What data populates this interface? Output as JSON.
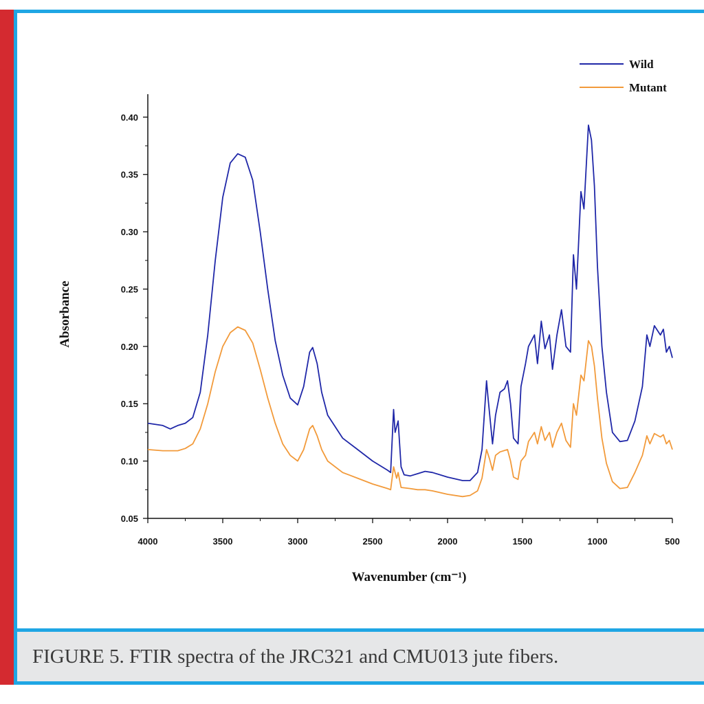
{
  "figure": {
    "caption": "FIGURE 5. FTIR spectra of the JRC321 and CMU013 jute fibers."
  },
  "colors": {
    "wild": "#1f27a8",
    "mutant": "#f29a3a",
    "frame": "#1fa6e4",
    "sidebar": "#d42a30",
    "caption_bg": "#e6e7e8"
  },
  "chart_data": {
    "type": "line",
    "xlabel": "Wavenumber (cm⁻¹)",
    "ylabel": "Absorbance",
    "xlim": [
      4000,
      500
    ],
    "ylim": [
      0.05,
      0.42
    ],
    "x_reversed": true,
    "x_ticks": [
      4000,
      3500,
      3000,
      2500,
      2000,
      1500,
      1000,
      500
    ],
    "x_tick_labels": [
      "4000",
      "3500",
      "3000",
      "2500",
      "2000",
      "1500",
      "1000",
      "500"
    ],
    "y_ticks": [
      0.05,
      0.1,
      0.15,
      0.2,
      0.25,
      0.3,
      0.35,
      0.4
    ],
    "y_tick_labels": [
      "0.05",
      "0.10",
      "0.15",
      "0.20",
      "0.25",
      "0.30",
      "0.35",
      "0.40"
    ],
    "legend_position": "top-right",
    "series": [
      {
        "name": "Wild",
        "color": "#1f27a8",
        "points": [
          [
            4000,
            0.133
          ],
          [
            3900,
            0.131
          ],
          [
            3850,
            0.128
          ],
          [
            3800,
            0.131
          ],
          [
            3750,
            0.133
          ],
          [
            3700,
            0.138
          ],
          [
            3650,
            0.16
          ],
          [
            3600,
            0.21
          ],
          [
            3550,
            0.275
          ],
          [
            3500,
            0.33
          ],
          [
            3450,
            0.36
          ],
          [
            3400,
            0.368
          ],
          [
            3350,
            0.365
          ],
          [
            3300,
            0.345
          ],
          [
            3250,
            0.3
          ],
          [
            3200,
            0.25
          ],
          [
            3150,
            0.205
          ],
          [
            3100,
            0.175
          ],
          [
            3050,
            0.155
          ],
          [
            3000,
            0.149
          ],
          [
            2960,
            0.165
          ],
          [
            2920,
            0.195
          ],
          [
            2900,
            0.199
          ],
          [
            2870,
            0.185
          ],
          [
            2840,
            0.16
          ],
          [
            2800,
            0.14
          ],
          [
            2700,
            0.12
          ],
          [
            2600,
            0.11
          ],
          [
            2500,
            0.1
          ],
          [
            2400,
            0.092
          ],
          [
            2380,
            0.09
          ],
          [
            2360,
            0.145
          ],
          [
            2350,
            0.125
          ],
          [
            2330,
            0.135
          ],
          [
            2310,
            0.095
          ],
          [
            2290,
            0.088
          ],
          [
            2250,
            0.087
          ],
          [
            2200,
            0.089
          ],
          [
            2150,
            0.091
          ],
          [
            2100,
            0.09
          ],
          [
            2000,
            0.086
          ],
          [
            1900,
            0.083
          ],
          [
            1850,
            0.083
          ],
          [
            1800,
            0.09
          ],
          [
            1770,
            0.11
          ],
          [
            1740,
            0.17
          ],
          [
            1730,
            0.155
          ],
          [
            1700,
            0.115
          ],
          [
            1680,
            0.14
          ],
          [
            1650,
            0.16
          ],
          [
            1620,
            0.163
          ],
          [
            1600,
            0.17
          ],
          [
            1580,
            0.15
          ],
          [
            1560,
            0.12
          ],
          [
            1530,
            0.115
          ],
          [
            1510,
            0.165
          ],
          [
            1480,
            0.185
          ],
          [
            1460,
            0.2
          ],
          [
            1420,
            0.21
          ],
          [
            1400,
            0.185
          ],
          [
            1375,
            0.222
          ],
          [
            1350,
            0.198
          ],
          [
            1320,
            0.21
          ],
          [
            1300,
            0.18
          ],
          [
            1270,
            0.21
          ],
          [
            1240,
            0.232
          ],
          [
            1210,
            0.2
          ],
          [
            1180,
            0.195
          ],
          [
            1160,
            0.28
          ],
          [
            1140,
            0.25
          ],
          [
            1110,
            0.335
          ],
          [
            1090,
            0.32
          ],
          [
            1060,
            0.393
          ],
          [
            1040,
            0.38
          ],
          [
            1020,
            0.34
          ],
          [
            1000,
            0.27
          ],
          [
            970,
            0.2
          ],
          [
            940,
            0.16
          ],
          [
            900,
            0.125
          ],
          [
            850,
            0.117
          ],
          [
            800,
            0.118
          ],
          [
            750,
            0.135
          ],
          [
            700,
            0.165
          ],
          [
            670,
            0.21
          ],
          [
            650,
            0.2
          ],
          [
            620,
            0.218
          ],
          [
            580,
            0.21
          ],
          [
            560,
            0.215
          ],
          [
            540,
            0.195
          ],
          [
            520,
            0.2
          ],
          [
            500,
            0.19
          ]
        ]
      },
      {
        "name": "Mutant",
        "color": "#f29a3a",
        "points": [
          [
            4000,
            0.11
          ],
          [
            3900,
            0.109
          ],
          [
            3800,
            0.109
          ],
          [
            3750,
            0.111
          ],
          [
            3700,
            0.115
          ],
          [
            3650,
            0.128
          ],
          [
            3600,
            0.15
          ],
          [
            3550,
            0.178
          ],
          [
            3500,
            0.2
          ],
          [
            3450,
            0.212
          ],
          [
            3400,
            0.217
          ],
          [
            3350,
            0.214
          ],
          [
            3300,
            0.203
          ],
          [
            3250,
            0.18
          ],
          [
            3200,
            0.155
          ],
          [
            3150,
            0.133
          ],
          [
            3100,
            0.115
          ],
          [
            3050,
            0.105
          ],
          [
            3000,
            0.1
          ],
          [
            2960,
            0.11
          ],
          [
            2920,
            0.128
          ],
          [
            2900,
            0.131
          ],
          [
            2870,
            0.122
          ],
          [
            2840,
            0.11
          ],
          [
            2800,
            0.1
          ],
          [
            2700,
            0.09
          ],
          [
            2600,
            0.085
          ],
          [
            2500,
            0.08
          ],
          [
            2400,
            0.076
          ],
          [
            2380,
            0.075
          ],
          [
            2360,
            0.095
          ],
          [
            2340,
            0.085
          ],
          [
            2330,
            0.09
          ],
          [
            2310,
            0.077
          ],
          [
            2250,
            0.076
          ],
          [
            2200,
            0.075
          ],
          [
            2150,
            0.075
          ],
          [
            2100,
            0.074
          ],
          [
            2000,
            0.071
          ],
          [
            1900,
            0.069
          ],
          [
            1850,
            0.07
          ],
          [
            1800,
            0.074
          ],
          [
            1770,
            0.085
          ],
          [
            1740,
            0.11
          ],
          [
            1720,
            0.102
          ],
          [
            1700,
            0.092
          ],
          [
            1680,
            0.105
          ],
          [
            1650,
            0.108
          ],
          [
            1600,
            0.11
          ],
          [
            1580,
            0.1
          ],
          [
            1560,
            0.086
          ],
          [
            1530,
            0.084
          ],
          [
            1510,
            0.1
          ],
          [
            1480,
            0.105
          ],
          [
            1460,
            0.117
          ],
          [
            1420,
            0.125
          ],
          [
            1400,
            0.115
          ],
          [
            1375,
            0.13
          ],
          [
            1350,
            0.118
          ],
          [
            1320,
            0.125
          ],
          [
            1300,
            0.112
          ],
          [
            1270,
            0.125
          ],
          [
            1240,
            0.133
          ],
          [
            1210,
            0.118
          ],
          [
            1180,
            0.112
          ],
          [
            1160,
            0.15
          ],
          [
            1140,
            0.14
          ],
          [
            1110,
            0.175
          ],
          [
            1090,
            0.17
          ],
          [
            1060,
            0.205
          ],
          [
            1040,
            0.2
          ],
          [
            1020,
            0.183
          ],
          [
            1000,
            0.155
          ],
          [
            970,
            0.12
          ],
          [
            940,
            0.098
          ],
          [
            900,
            0.082
          ],
          [
            850,
            0.076
          ],
          [
            800,
            0.077
          ],
          [
            750,
            0.09
          ],
          [
            700,
            0.105
          ],
          [
            670,
            0.122
          ],
          [
            650,
            0.115
          ],
          [
            620,
            0.124
          ],
          [
            580,
            0.121
          ],
          [
            560,
            0.123
          ],
          [
            540,
            0.115
          ],
          [
            520,
            0.118
          ],
          [
            500,
            0.11
          ]
        ]
      }
    ]
  }
}
